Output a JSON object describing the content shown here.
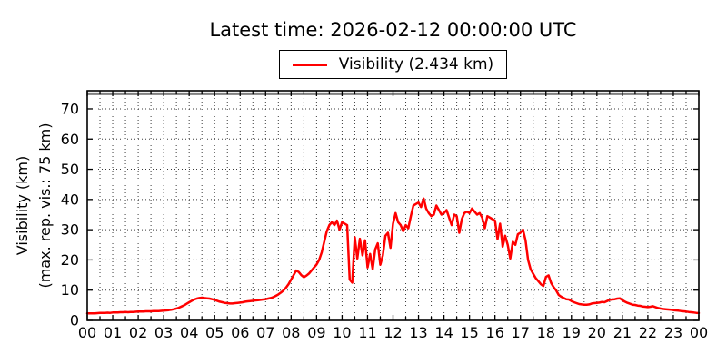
{
  "chart_data": {
    "type": "line",
    "title": "Latest time: 2026-02-12 00:00:00 UTC",
    "ylabel": "Visibility (km)",
    "ylabel_line2": "(max. rep. vis.: 75 km)",
    "xtick_labels": [
      "00",
      "01",
      "02",
      "03",
      "04",
      "05",
      "06",
      "07",
      "08",
      "09",
      "10",
      "11",
      "12",
      "13",
      "14",
      "15",
      "16",
      "17",
      "18",
      "19",
      "20",
      "21",
      "22",
      "23",
      "00"
    ],
    "yticks": [
      0,
      10,
      20,
      30,
      40,
      50,
      60,
      70
    ],
    "ylim": [
      0,
      76
    ],
    "xlim_hours": [
      0,
      24
    ],
    "grid": "dotted, vertical every 0.5 h, horizontal every 10 km",
    "legend_position": "upper center above axes",
    "max_reported_visibility_km": 75,
    "max_line_color": "#808080",
    "latest_value_km": 2.434,
    "background": "#ffffff",
    "series": [
      {
        "name": "Visibility (2.434 km)",
        "color": "#ff0000",
        "x_start_hour": 0,
        "x_step_hours": 0.1,
        "values_km": [
          2.3,
          2.3,
          2.35,
          2.3,
          2.4,
          2.45,
          2.5,
          2.5,
          2.55,
          2.5,
          2.6,
          2.6,
          2.65,
          2.7,
          2.7,
          2.75,
          2.7,
          2.8,
          2.8,
          2.85,
          2.9,
          2.9,
          2.95,
          3.0,
          3.0,
          3.0,
          3.05,
          3.1,
          3.1,
          3.15,
          3.2,
          3.3,
          3.4,
          3.5,
          3.7,
          3.9,
          4.2,
          4.6,
          5.0,
          5.5,
          6.0,
          6.5,
          6.9,
          7.2,
          7.4,
          7.5,
          7.4,
          7.3,
          7.2,
          7.0,
          6.8,
          6.5,
          6.2,
          6.0,
          5.8,
          5.7,
          5.6,
          5.6,
          5.7,
          5.8,
          5.9,
          6.0,
          6.2,
          6.3,
          6.4,
          6.5,
          6.6,
          6.7,
          6.8,
          6.9,
          7.0,
          7.2,
          7.4,
          7.7,
          8.1,
          8.6,
          9.2,
          9.9,
          10.8,
          12.0,
          13.5,
          15.0,
          16.5,
          16.0,
          15.0,
          14.3,
          14.8,
          15.5,
          16.5,
          17.5,
          18.5,
          20.0,
          22.5,
          26.0,
          29.5,
          31.5,
          32.5,
          31.5,
          33.0,
          30.0,
          32.5,
          32.0,
          31.5,
          13.5,
          12.5,
          27.5,
          20.5,
          27.0,
          21.5,
          26.5,
          17.5,
          22.0,
          16.9,
          23.5,
          25.5,
          18.4,
          21.5,
          28.0,
          29.0,
          24.0,
          32.0,
          35.5,
          32.5,
          31.5,
          29.5,
          31.5,
          30.5,
          34.5,
          38.0,
          38.5,
          39.0,
          37.5,
          40.3,
          37.0,
          35.5,
          34.5,
          35.0,
          38.0,
          36.5,
          35.0,
          35.5,
          36.5,
          34.0,
          31.5,
          35.0,
          34.5,
          29.0,
          33.5,
          35.5,
          36.0,
          35.5,
          37.0,
          36.0,
          35.0,
          35.5,
          34.0,
          30.5,
          34.5,
          34.0,
          33.5,
          33.0,
          26.9,
          32.0,
          24.4,
          28.0,
          25.0,
          20.5,
          26.0,
          25.0,
          28.5,
          29.0,
          30.0,
          26.5,
          20.0,
          16.9,
          15.4,
          14.0,
          13.0,
          12.0,
          11.4,
          14.4,
          14.9,
          12.4,
          11.0,
          9.9,
          8.4,
          7.8,
          7.4,
          7.0,
          6.9,
          6.4,
          6.0,
          5.7,
          5.4,
          5.3,
          5.2,
          5.2,
          5.3,
          5.6,
          5.7,
          5.8,
          5.9,
          6.1,
          6.0,
          6.4,
          6.8,
          6.9,
          7.0,
          7.2,
          7.3,
          6.7,
          6.2,
          5.8,
          5.5,
          5.2,
          5.1,
          4.9,
          4.8,
          4.6,
          4.5,
          4.4,
          4.5,
          4.7,
          4.4,
          4.1,
          3.9,
          3.8,
          3.7,
          3.6,
          3.5,
          3.4,
          3.3,
          3.2,
          3.1,
          3.0,
          2.9,
          2.8,
          2.7,
          2.6,
          2.5,
          2.434
        ]
      }
    ]
  }
}
